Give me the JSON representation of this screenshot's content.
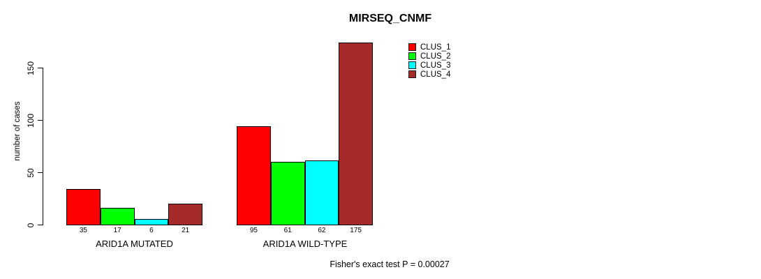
{
  "chart_data": {
    "type": "bar",
    "title": "MIRSEQ_CNMF",
    "ylabel": "number of cases",
    "xlabel": "",
    "ylim": [
      0,
      175
    ],
    "yticks": [
      0,
      50,
      100,
      150
    ],
    "grid": false,
    "legend_position": "top-right",
    "bar_value_labels_shown": true,
    "categories": [
      "ARID1A MUTATED",
      "ARID1A WILD-TYPE"
    ],
    "series": [
      {
        "name": "CLUS_1",
        "color": "#ff0000",
        "values": [
          35,
          95
        ]
      },
      {
        "name": "CLUS_2",
        "color": "#00ff00",
        "values": [
          17,
          61
        ]
      },
      {
        "name": "CLUS_3",
        "color": "#00ffff",
        "values": [
          6,
          62
        ]
      },
      {
        "name": "CLUS_4",
        "color": "#a52a2a",
        "values": [
          21,
          175
        ]
      }
    ],
    "annotation": "Fisher's exact test P = 0.00027",
    "colors": {
      "axis": "#000000",
      "text": "#000000",
      "background": "#ffffff"
    }
  }
}
